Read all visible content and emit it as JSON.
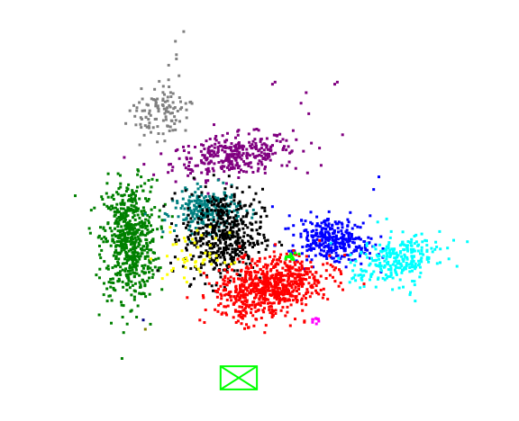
{
  "chart_data": {
    "type": "scatter",
    "title": "",
    "xlabel": "",
    "ylabel": "",
    "axes_visible": false,
    "grid": false,
    "legend": "none",
    "xlim": [
      0,
      100
    ],
    "ylim": [
      0,
      100
    ],
    "marker": "square",
    "series": [
      {
        "color": "#808080",
        "cx": 31,
        "cy": 73,
        "sx": 2.8,
        "sy": 3.2,
        "n": 110,
        "rot": -0.4
      },
      {
        "color": "#800080",
        "cx": 45,
        "cy": 63,
        "sx": 6.0,
        "sy": 2.4,
        "n": 330,
        "rot": 0.15
      },
      {
        "color": "#008000",
        "cx": 25,
        "cy": 43,
        "sx": 2.6,
        "sy": 7.0,
        "n": 620,
        "rot": 0.0
      },
      {
        "color": "#008080",
        "cx": 40,
        "cy": 50,
        "sx": 3.2,
        "sy": 2.4,
        "n": 240,
        "rot": 0.1
      },
      {
        "color": "#000000",
        "cx": 43,
        "cy": 44,
        "sx": 3.8,
        "sy": 5.5,
        "n": 480,
        "rot": 0.0
      },
      {
        "color": "#0000ff",
        "cx": 64,
        "cy": 43,
        "sx": 3.8,
        "sy": 2.6,
        "n": 310,
        "rot": -0.2
      },
      {
        "color": "#00ffff",
        "cx": 76,
        "cy": 38,
        "sx": 4.4,
        "sy": 2.7,
        "n": 260,
        "rot": 0.5
      },
      {
        "color": "#ff0000",
        "cx": 52,
        "cy": 32,
        "sx": 5.4,
        "sy": 3.3,
        "n": 720,
        "rot": 0.35
      },
      {
        "color": "#ffff00",
        "cx": 38,
        "cy": 39,
        "sx": 3.2,
        "sy": 3.0,
        "n": 45,
        "rot": 0.0
      },
      {
        "color": "#00ff00",
        "cx": 56,
        "cy": 39,
        "sx": 0.7,
        "sy": 0.5,
        "n": 12,
        "rot": 0.0
      },
      {
        "color": "#ff00ff",
        "cx": 61,
        "cy": 24,
        "sx": 0.6,
        "sy": 0.4,
        "n": 8,
        "rot": 0.0
      }
    ],
    "scattered_points": [
      {
        "color": "#808080",
        "points": [
          [
            35.4,
            92.5
          ],
          [
            33.8,
            90.2
          ],
          [
            34.0,
            87.0
          ],
          [
            34.5,
            82.0
          ],
          [
            32.5,
            84.5
          ],
          [
            34.0,
            86.0
          ]
        ]
      },
      {
        "color": "#800080",
        "points": [
          [
            52.5,
            80.0
          ],
          [
            53.0,
            80.5
          ],
          [
            59.0,
            78.0
          ],
          [
            64.5,
            80.0
          ],
          [
            65.0,
            80.5
          ],
          [
            58.0,
            75.5
          ],
          [
            59.5,
            73.0
          ],
          [
            66.0,
            68.0
          ],
          [
            60.0,
            66.0
          ],
          [
            57.0,
            60.0
          ]
        ]
      },
      {
        "color": "#0000ff",
        "points": [
          [
            73.0,
            58.0
          ],
          [
            72.0,
            55.0
          ],
          [
            67.5,
            49.5
          ],
          [
            70.0,
            47.0
          ]
        ]
      },
      {
        "color": "#008000",
        "points": [
          [
            14.5,
            53.5
          ],
          [
            26.5,
            58.5
          ],
          [
            29.0,
            23.0
          ],
          [
            21.0,
            33.0
          ],
          [
            20.0,
            30.0
          ]
        ]
      },
      {
        "color": "#000080",
        "points": [
          [
            27.6,
            24.0
          ]
        ]
      },
      {
        "color": "#808000",
        "points": [
          [
            28.0,
            21.8
          ]
        ]
      },
      {
        "color": "#ffff00",
        "points": [
          [
            32.8,
            46.0
          ],
          [
            34.0,
            42.0
          ],
          [
            35.5,
            34.0
          ],
          [
            36.0,
            33.0
          ]
        ]
      },
      {
        "color": "#ff0000",
        "points": [
          [
            42.0,
            26.0
          ],
          [
            46.0,
            25.0
          ],
          [
            51.0,
            21.0
          ],
          [
            54.5,
            27.0
          ],
          [
            59.0,
            35.0
          ],
          [
            55.0,
            25.0
          ]
        ]
      },
      {
        "color": "#00ffff",
        "points": [
          [
            74.5,
            48.0
          ],
          [
            79.0,
            30.0
          ],
          [
            86.5,
            38.5
          ],
          [
            80.0,
            28.5
          ]
        ]
      }
    ],
    "annotation_box": {
      "color": "#00ff00",
      "x": [
        42.5,
        49.5
      ],
      "y": [
        7.5,
        13.0
      ],
      "crossed": true
    }
  }
}
